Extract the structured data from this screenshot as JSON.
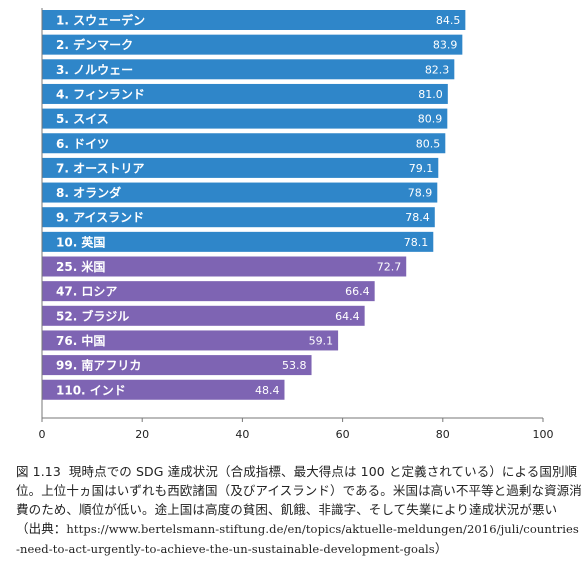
{
  "chart_data": {
    "type": "bar",
    "orientation": "horizontal",
    "categories": [
      "1. スウェーデン",
      "2. デンマーク",
      "3. ノルウェー",
      "4. フィンランド",
      "5. スイス",
      "6. ドイツ",
      "7. オーストリア",
      "8. オランダ",
      "9. アイスランド",
      "10. 英国",
      "25. 米国",
      "47. ロシア",
      "52. ブラジル",
      "76. 中国",
      "99. 南アフリカ",
      "110. インド"
    ],
    "values": [
      84.5,
      83.9,
      82.3,
      81.0,
      80.9,
      80.5,
      79.1,
      78.9,
      78.4,
      78.1,
      72.7,
      66.4,
      64.4,
      59.1,
      53.8,
      48.4
    ],
    "value_labels": [
      "84.5",
      "83.9",
      "82.3",
      "81.0",
      "80.9",
      "80.5",
      "79.1",
      "78.9",
      "78.4",
      "78.1",
      "72.7",
      "66.4",
      "64.4",
      "59.1",
      "53.8",
      "48.4"
    ],
    "groups": [
      "top10",
      "top10",
      "top10",
      "top10",
      "top10",
      "top10",
      "top10",
      "top10",
      "top10",
      "top10",
      "other",
      "other",
      "other",
      "other",
      "other",
      "other"
    ],
    "colors": {
      "top10": "#2f86c9",
      "other": "#7e64b3"
    },
    "xlim": [
      0,
      100
    ],
    "xticks": [
      0,
      20,
      40,
      60,
      80,
      100
    ],
    "xtick_labels": [
      "0",
      "20",
      "40",
      "60",
      "80",
      "100"
    ],
    "grid": false,
    "title": "",
    "xlabel": "",
    "ylabel": ""
  },
  "caption": {
    "figure_number": "図 1.13",
    "text": "現時点での SDG 達成状況（合成指標、最大得点は 100 と定義されている）による国別順位。上位十ヵ国はいずれも西欧諸国（及びアイスランド）である。米国は高い不平等と過剰な資源消費のため、順位が低い。途上国は高度の貧困、飢餓、非識字、そして失業により達成状況が悪い（出典：",
    "source_url": "https://www.bertelsmann-stiftung.de/en/topics/aktuelle-meldungen/2016/juli/countries-need-to-act-urgently-to-achieve-the-un-sustainable-development-goals",
    "closing": "）"
  }
}
